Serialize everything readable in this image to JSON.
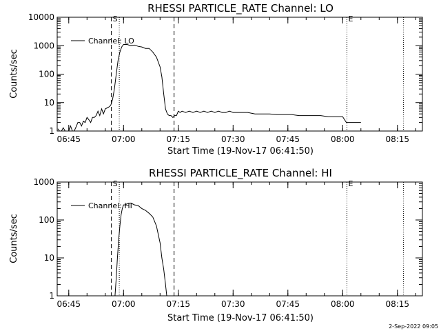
{
  "footer": {
    "timestamp": "2-Sep-2022 09:05"
  },
  "chart_data": [
    {
      "type": "line",
      "title": "RHESSI PARTICLE_RATE Channel: LO",
      "xlabel": "Start Time (19-Nov-17 06:41:50)",
      "ylabel": "Counts/sec",
      "y_scale": "log",
      "xlim": [
        "06:41:50",
        "08:21:50"
      ],
      "ylim": [
        1,
        10000
      ],
      "x_ticks": [
        "06:45",
        "07:00",
        "07:15",
        "07:30",
        "07:45",
        "08:00",
        "08:15"
      ],
      "y_ticks": [
        "1",
        "10",
        "100",
        "1000",
        "10000"
      ],
      "legend": {
        "position": "top-left",
        "entries": [
          "Channel: LO"
        ]
      },
      "markers": [
        {
          "label": "S",
          "time": "06:56:40",
          "style": "dashed"
        },
        {
          "label": "",
          "time": "06:58:50",
          "style": "dotted"
        },
        {
          "label": "",
          "time": "07:13:50",
          "style": "dashed"
        },
        {
          "label": "E",
          "time": "08:01:10",
          "style": "dotted"
        },
        {
          "label": "",
          "time": "08:16:40",
          "style": "dotted"
        }
      ],
      "series": [
        {
          "name": "Channel: LO",
          "x": [
            "06:42:00",
            "06:42:30",
            "06:43:00",
            "06:43:30",
            "06:44:00",
            "06:44:30",
            "06:45:00",
            "06:45:30",
            "06:46:00",
            "06:46:30",
            "06:47:00",
            "06:47:30",
            "06:48:00",
            "06:48:30",
            "06:49:00",
            "06:49:30",
            "06:50:00",
            "06:50:30",
            "06:51:00",
            "06:51:30",
            "06:52:00",
            "06:52:30",
            "06:53:00",
            "06:53:30",
            "06:54:00",
            "06:54:30",
            "06:55:00",
            "06:55:30",
            "06:56:00",
            "06:56:30",
            "06:57:00",
            "06:57:30",
            "06:58:00",
            "06:58:30",
            "06:59:00",
            "06:59:30",
            "07:00:00",
            "07:00:30",
            "07:01:00",
            "07:02:00",
            "07:03:00",
            "07:04:00",
            "07:05:00",
            "07:06:00",
            "07:07:00",
            "07:08:00",
            "07:09:00",
            "07:10:00",
            "07:10:30",
            "07:11:00",
            "07:11:30",
            "07:12:00",
            "07:12:30",
            "07:13:00",
            "07:13:30",
            "07:14:00",
            "07:14:30",
            "07:15:00",
            "07:15:30",
            "07:16:00",
            "07:17:00",
            "07:18:00",
            "07:19:00",
            "07:20:00",
            "07:21:00",
            "07:22:00",
            "07:23:00",
            "07:24:00",
            "07:25:00",
            "07:26:00",
            "07:27:00",
            "07:28:00",
            "07:29:00",
            "07:30:00",
            "07:32:00",
            "07:34:00",
            "07:36:00",
            "07:38:00",
            "07:40:00",
            "07:42:00",
            "07:44:00",
            "07:46:00",
            "07:48:00",
            "07:50:00",
            "07:52:00",
            "07:54:00",
            "07:56:00",
            "07:58:00",
            "08:00:00",
            "08:01:00",
            "08:02:00",
            "08:03:00",
            "08:04:00",
            "08:05:00"
          ],
          "values": [
            1.2,
            1.0,
            1.0,
            1.3,
            1.0,
            1.0,
            1.0,
            1.5,
            1.0,
            1.0,
            1.4,
            2.0,
            2.0,
            1.5,
            2.2,
            2.0,
            3.0,
            2.5,
            2.0,
            3.0,
            3.0,
            3.5,
            5.0,
            3.5,
            6.0,
            4.0,
            6.0,
            6.5,
            7.0,
            8.0,
            13,
            30,
            100,
            300,
            600,
            900,
            1100,
            1100,
            1100,
            1000,
            1050,
            950,
            900,
            800,
            800,
            600,
            400,
            180,
            80,
            20,
            6.0,
            4.0,
            3.5,
            3.5,
            3.0,
            3.5,
            3.5,
            5.0,
            4.5,
            5.0,
            4.5,
            5.0,
            4.5,
            5.0,
            4.5,
            5.0,
            4.5,
            5.0,
            4.5,
            5.0,
            4.5,
            4.5,
            5.0,
            4.5,
            4.5,
            4.5,
            4.0,
            4.0,
            4.0,
            3.8,
            3.8,
            3.8,
            3.5,
            3.5,
            3.5,
            3.5,
            3.2,
            3.2,
            3.2,
            2.0,
            2.0,
            2.0,
            2.0,
            2.0
          ]
        }
      ]
    },
    {
      "type": "line",
      "title": "RHESSI PARTICLE_RATE Channel: HI",
      "xlabel": "Start Time (19-Nov-17 06:41:50)",
      "ylabel": "Counts/sec",
      "y_scale": "log",
      "xlim": [
        "06:41:50",
        "08:21:50"
      ],
      "ylim": [
        1,
        1000
      ],
      "x_ticks": [
        "06:45",
        "07:00",
        "07:15",
        "07:30",
        "07:45",
        "08:00",
        "08:15"
      ],
      "y_ticks": [
        "1",
        "10",
        "100",
        "1000"
      ],
      "legend": {
        "position": "top-left",
        "entries": [
          "Channel: HI"
        ]
      },
      "markers": [
        {
          "label": "S",
          "time": "06:56:40",
          "style": "dashed"
        },
        {
          "label": "",
          "time": "06:58:50",
          "style": "dotted"
        },
        {
          "label": "",
          "time": "07:13:50",
          "style": "dashed"
        },
        {
          "label": "E",
          "time": "08:01:10",
          "style": "dotted"
        },
        {
          "label": "",
          "time": "08:16:40",
          "style": "dotted"
        }
      ],
      "series": [
        {
          "name": "Channel: HI",
          "x": [
            "06:57:40",
            "06:58:00",
            "06:58:20",
            "06:58:40",
            "06:59:00",
            "06:59:20",
            "06:59:40",
            "07:00:00",
            "07:00:30",
            "07:01:00",
            "07:02:00",
            "07:03:00",
            "07:04:00",
            "07:05:00",
            "07:06:00",
            "07:07:00",
            "07:08:00",
            "07:09:00",
            "07:10:00",
            "07:10:30",
            "07:11:00",
            "07:11:30",
            "07:11:50"
          ],
          "values": [
            1.0,
            3.0,
            10,
            30,
            70,
            140,
            200,
            250,
            250,
            270,
            280,
            250,
            240,
            200,
            180,
            150,
            120,
            70,
            25,
            10,
            5.0,
            2.0,
            1.0
          ]
        }
      ]
    }
  ]
}
